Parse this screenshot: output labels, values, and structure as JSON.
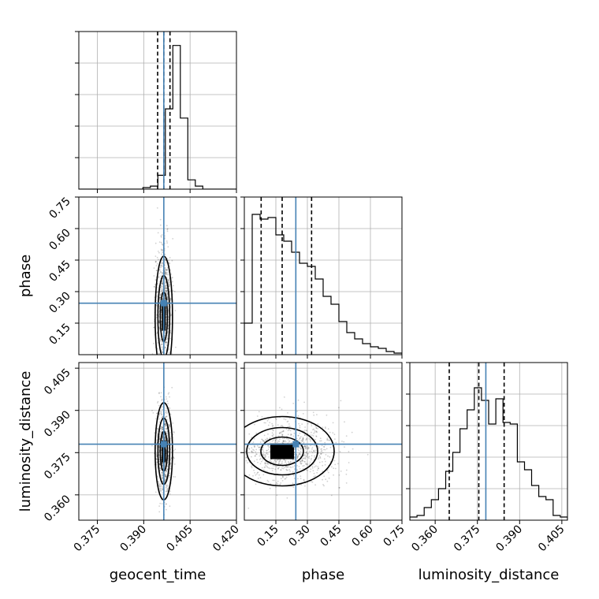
{
  "chart_data": {
    "type": "corner",
    "parameters": [
      {
        "name": "geocent_time",
        "ticks": [
          "0.375",
          "0.390",
          "0.405",
          "0.420"
        ],
        "tick_values": [
          0.375,
          0.39,
          0.405,
          0.42
        ],
        "range": [
          0.369,
          0.42
        ],
        "truth": 0.3965,
        "quantiles": [
          0.3945,
          0.3965,
          0.3985
        ]
      },
      {
        "name": "phase",
        "ticks": [
          "0.15",
          "0.30",
          "0.45",
          "0.60",
          "0.75"
        ],
        "tick_values": [
          0.15,
          0.3,
          0.45,
          0.6,
          0.75
        ],
        "range": [
          0.0,
          0.75
        ],
        "truth": 0.245,
        "quantiles": [
          0.08,
          0.18,
          0.32
        ]
      },
      {
        "name": "luminosity_distance",
        "ticks": [
          "0.360",
          "0.375",
          "0.390",
          "0.405"
        ],
        "tick_values": [
          0.36,
          0.375,
          0.39,
          0.405
        ],
        "range": [
          0.351,
          0.407
        ],
        "truth": 0.378,
        "quantiles": [
          0.365,
          0.3755,
          0.3845
        ]
      }
    ],
    "hist": {
      "geocent_time": [
        0,
        0,
        0,
        0,
        0,
        0,
        0,
        0,
        0,
        0,
        0.01,
        0.02,
        0.09,
        0.52,
        0.93,
        0.46,
        0.06,
        0.02,
        0,
        0,
        0,
        0,
        0,
        0,
        0,
        0,
        0,
        0,
        0,
        0,
        0,
        0
      ],
      "phase": [
        0.2,
        0.89,
        0.86,
        0.87,
        0.76,
        0.72,
        0.65,
        0.58,
        0.56,
        0.48,
        0.37,
        0.32,
        0.21,
        0.14,
        0.1,
        0.07,
        0.05,
        0.04,
        0.02,
        0.01
      ],
      "luminosity_distance": [
        0.02,
        0.03,
        0.08,
        0.13,
        0.2,
        0.31,
        0.43,
        0.58,
        0.7,
        0.84,
        0.76,
        0.61,
        0.77,
        0.62,
        0.61,
        0.37,
        0.32,
        0.22,
        0.15,
        0.13,
        0.03,
        0.02
      ]
    },
    "grid": true,
    "truth_color": "#4682b4"
  }
}
